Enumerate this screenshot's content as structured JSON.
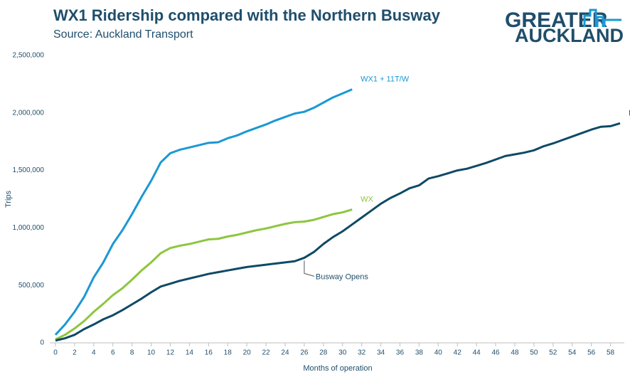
{
  "logo": {
    "line1": "GREATER",
    "line2": "AUCKLAND"
  },
  "chart_data": {
    "type": "line",
    "title": "WX1 Ridership compared with the Northern Busway",
    "subtitle": "Source: Auckland Transport",
    "x_label": "Months of operation",
    "y_label": "Trips",
    "xlim": [
      0,
      59
    ],
    "xticks": [
      0,
      2,
      4,
      6,
      8,
      10,
      12,
      14,
      16,
      18,
      20,
      22,
      24,
      26,
      28,
      30,
      32,
      34,
      36,
      38,
      40,
      42,
      44,
      46,
      48,
      50,
      52,
      54,
      56,
      58
    ],
    "ylim": [
      0,
      2500000
    ],
    "yticks": [
      0,
      {
        "value": 500000,
        "label": "500,000"
      },
      {
        "value": 1000000,
        "label": "1,000,000"
      },
      {
        "value": 1500000,
        "label": "1,500,000"
      },
      {
        "value": 2000000,
        "label": "2,000,000"
      },
      {
        "value": 2500000,
        "label": "2,500,000"
      }
    ],
    "grid": false,
    "series": [
      {
        "name": "WX1 + 11T/W",
        "color": "#1b98d3",
        "values": [
          70000,
          160000,
          270000,
          400000,
          570000,
          700000,
          860000,
          980000,
          1120000,
          1270000,
          1410000,
          1570000,
          1650000,
          1680000,
          1700000,
          1720000,
          1740000,
          1745000,
          1780000,
          1805000,
          1840000,
          1870000,
          1900000,
          1935000,
          1965000,
          1995000,
          2010000,
          2045000,
          2090000,
          2135000,
          2170000,
          2205000
        ]
      },
      {
        "name": "WX",
        "color": "#8dc63f",
        "values": [
          30000,
          70000,
          125000,
          190000,
          270000,
          340000,
          415000,
          475000,
          550000,
          630000,
          700000,
          780000,
          825000,
          845000,
          860000,
          880000,
          900000,
          905000,
          925000,
          940000,
          960000,
          980000,
          995000,
          1015000,
          1035000,
          1050000,
          1055000,
          1070000,
          1095000,
          1120000,
          1135000,
          1160000
        ]
      },
      {
        "name": "NX",
        "color": "#0e4a66",
        "values": [
          20000,
          40000,
          70000,
          120000,
          160000,
          205000,
          240000,
          285000,
          335000,
          385000,
          440000,
          490000,
          515000,
          540000,
          560000,
          580000,
          600000,
          615000,
          630000,
          645000,
          660000,
          670000,
          680000,
          690000,
          700000,
          710000,
          740000,
          790000,
          860000,
          920000,
          970000,
          1030000,
          1090000,
          1150000,
          1210000,
          1260000,
          1300000,
          1345000,
          1370000,
          1430000,
          1450000,
          1475000,
          1500000,
          1515000,
          1540000,
          1565000,
          1595000,
          1625000,
          1640000,
          1655000,
          1675000,
          1710000,
          1735000,
          1765000,
          1795000,
          1825000,
          1855000,
          1880000,
          1885000,
          1910000
        ]
      }
    ],
    "annotations": [
      {
        "text": "Busway Opens",
        "x": 26
      }
    ]
  }
}
